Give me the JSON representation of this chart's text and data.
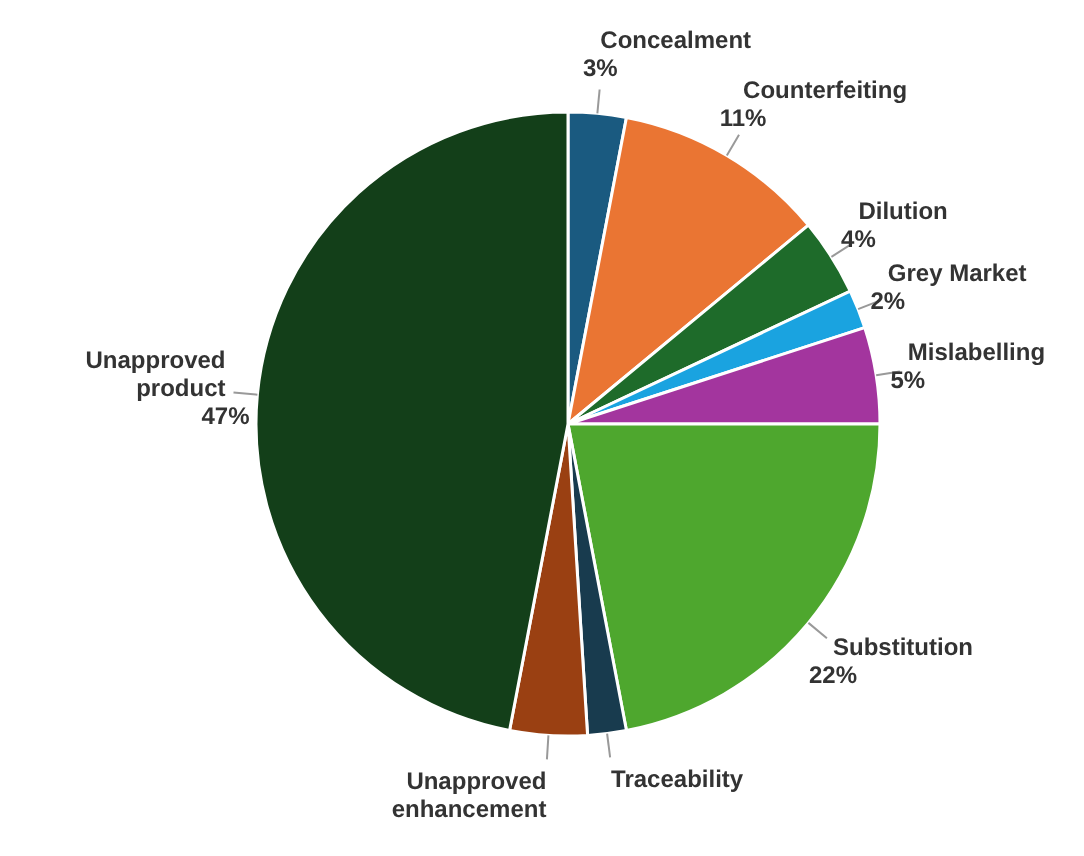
{
  "chart_data": {
    "type": "pie",
    "categories": [
      "Concealment",
      "Counterfeiting",
      "Dilution",
      "Grey Market",
      "Mislabelling",
      "Substitution",
      "Traceability",
      "Unapproved enhancement",
      "Unapproved product"
    ],
    "values": [
      3,
      11,
      4,
      2,
      5,
      22,
      2,
      4,
      47
    ],
    "colors": [
      "#1a5a80",
      "#ea7533",
      "#1e6b2a",
      "#1aa3e0",
      "#a3359e",
      "#4ea72e",
      "#183b4e",
      "#9a4012",
      "#133f19"
    ],
    "value_labels": [
      "3%",
      "11%",
      "4%",
      "2%",
      "5%",
      "22%",
      null,
      null,
      "47%"
    ]
  }
}
